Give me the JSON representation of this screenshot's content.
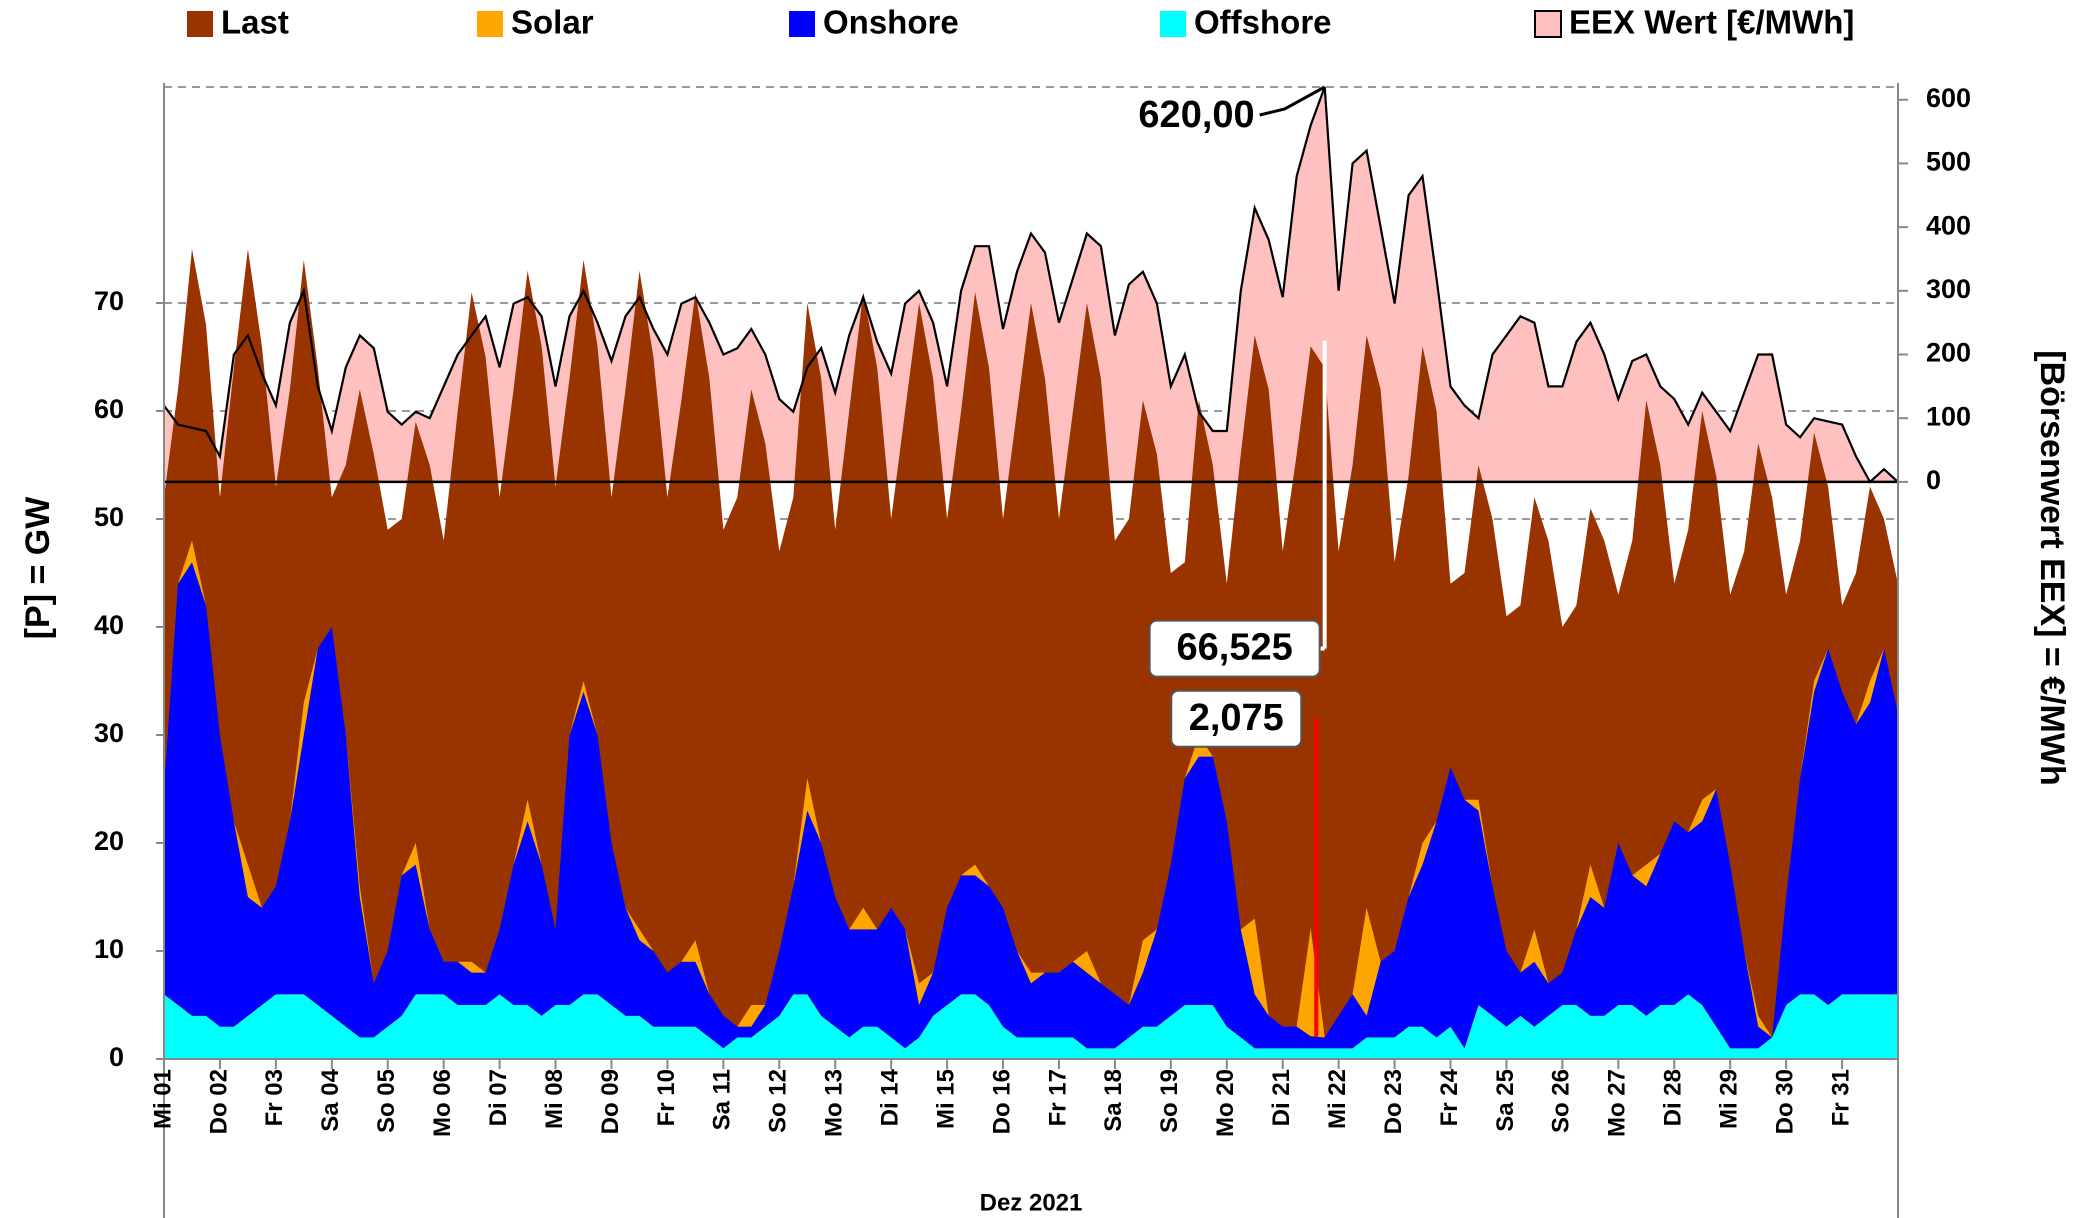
{
  "chart_data": {
    "type": "area",
    "ylabel": "[P]  =  GW",
    "y2label": "[Börsenwert  EEX]  =  €/MWh",
    "xlabel": "Dez 2021",
    "xlim": [
      0,
      31
    ],
    "ylim": [
      0,
      90
    ],
    "y2lim": [
      -906,
      620
    ],
    "yticks": [
      0,
      10,
      20,
      30,
      40,
      50,
      60,
      70
    ],
    "y2ticks": [
      0,
      100,
      200,
      300,
      400,
      500,
      600
    ],
    "grid": true,
    "xticks": [
      {
        "value": 0,
        "label": "Mi 01"
      },
      {
        "value": 1,
        "label": "Do 02"
      },
      {
        "value": 2,
        "label": "Fr 03"
      },
      {
        "value": 3,
        "label": "Sa 04"
      },
      {
        "value": 4,
        "label": "So 05"
      },
      {
        "value": 5,
        "label": "Mo 06"
      },
      {
        "value": 6,
        "label": "Di 07"
      },
      {
        "value": 7,
        "label": "Mi 08"
      },
      {
        "value": 8,
        "label": "Do 09"
      },
      {
        "value": 9,
        "label": "Fr 10"
      },
      {
        "value": 10,
        "label": "Sa 11"
      },
      {
        "value": 11,
        "label": "So 12"
      },
      {
        "value": 12,
        "label": "Mo 13"
      },
      {
        "value": 13,
        "label": "Di 14"
      },
      {
        "value": 14,
        "label": "Mi 15"
      },
      {
        "value": 15,
        "label": "Do 16"
      },
      {
        "value": 16,
        "label": "Fr 17"
      },
      {
        "value": 17,
        "label": "Sa 18"
      },
      {
        "value": 18,
        "label": "So 19"
      },
      {
        "value": 19,
        "label": "Mo 20"
      },
      {
        "value": 20,
        "label": "Di 21"
      },
      {
        "value": 21,
        "label": "Mi 22"
      },
      {
        "value": 22,
        "label": "Do 23"
      },
      {
        "value": 23,
        "label": "Fr 24"
      },
      {
        "value": 24,
        "label": "Sa 25"
      },
      {
        "value": 25,
        "label": "So 26"
      },
      {
        "value": 26,
        "label": "Mo 27"
      },
      {
        "value": 27,
        "label": "Di 28"
      },
      {
        "value": 28,
        "label": "Mi 29"
      },
      {
        "value": 29,
        "label": "Do 30"
      },
      {
        "value": 30,
        "label": "Fr 31"
      }
    ],
    "x": [
      0,
      0.25,
      0.5,
      0.75,
      1,
      1.25,
      1.5,
      1.75,
      2,
      2.25,
      2.5,
      2.75,
      3,
      3.25,
      3.5,
      3.75,
      4,
      4.25,
      4.5,
      4.75,
      5,
      5.25,
      5.5,
      5.75,
      6,
      6.25,
      6.5,
      6.75,
      7,
      7.25,
      7.5,
      7.75,
      8,
      8.25,
      8.5,
      8.75,
      9,
      9.25,
      9.5,
      9.75,
      10,
      10.25,
      10.5,
      10.75,
      11,
      11.25,
      11.5,
      11.75,
      12,
      12.25,
      12.5,
      12.75,
      13,
      13.25,
      13.5,
      13.75,
      14,
      14.25,
      14.5,
      14.75,
      15,
      15.25,
      15.5,
      15.75,
      16,
      16.25,
      16.5,
      16.75,
      17,
      17.25,
      17.5,
      17.75,
      18,
      18.25,
      18.5,
      18.75,
      19,
      19.25,
      19.5,
      19.75,
      20,
      20.25,
      20.5,
      20.75,
      21,
      21.25,
      21.5,
      21.75,
      22,
      22.25,
      22.5,
      22.75,
      23,
      23.25,
      23.5,
      23.75,
      24,
      24.25,
      24.5,
      24.75,
      25,
      25.25,
      25.5,
      25.75,
      26,
      26.25,
      26.5,
      26.75,
      27,
      27.25,
      27.5,
      27.75,
      28,
      28.25,
      28.5,
      28.75,
      29,
      29.25,
      29.5,
      29.75,
      30,
      30.25,
      30.5,
      30.75,
      31
    ],
    "series": [
      {
        "name": "Last",
        "color": "#993300",
        "values": [
          52,
          62,
          75,
          68,
          52,
          64,
          75,
          66,
          53,
          62,
          74,
          64,
          52,
          55,
          62,
          56,
          49,
          50,
          59,
          55,
          48,
          60,
          71,
          65,
          52,
          62,
          73,
          66,
          53,
          63,
          74,
          66,
          52,
          62,
          73,
          65,
          52,
          61,
          71,
          63,
          49,
          52,
          62,
          57,
          47,
          52,
          70,
          63,
          49,
          60,
          71,
          64,
          50,
          60,
          70,
          63,
          50,
          60,
          71,
          64,
          50,
          60,
          70,
          63,
          50,
          60,
          70,
          63,
          48,
          50,
          61,
          56,
          45,
          46,
          61,
          55,
          44,
          56,
          67,
          62,
          47,
          56,
          66,
          64,
          47,
          55,
          67,
          62,
          46,
          54,
          66,
          60,
          44,
          45,
          55,
          50,
          41,
          42,
          52,
          48,
          40,
          42,
          51,
          48,
          43,
          48,
          61,
          55,
          44,
          49,
          60,
          54,
          43,
          47,
          57,
          52,
          43,
          48,
          58,
          53,
          42,
          45,
          53,
          50,
          44
        ]
      },
      {
        "name": "Solar",
        "color": "#FFA500",
        "stack": true,
        "values": [
          0,
          0,
          2,
          0,
          0,
          0,
          3,
          0,
          0,
          0,
          3,
          0,
          0,
          0,
          1,
          0,
          0,
          0,
          2,
          0,
          0,
          0,
          1,
          0,
          0,
          0,
          2,
          0,
          0,
          0,
          1,
          0,
          0,
          0,
          1,
          0,
          0,
          0,
          2,
          0,
          0,
          0,
          2,
          0,
          0,
          0,
          3,
          0,
          0,
          0,
          2,
          0,
          0,
          0,
          2,
          0,
          0,
          0,
          1,
          0,
          0,
          0,
          1,
          0,
          0,
          0,
          2,
          0,
          0,
          0,
          3,
          0,
          0,
          0,
          2,
          0,
          0,
          0,
          7,
          0,
          0,
          0,
          10,
          0,
          0,
          0,
          10,
          0,
          0,
          0,
          2,
          0,
          0,
          0,
          1,
          0,
          0,
          0,
          3,
          0,
          0,
          0,
          3,
          0,
          0,
          0,
          2,
          0,
          0,
          0,
          2,
          0,
          0,
          0,
          1,
          0,
          0,
          0,
          1,
          0,
          0,
          0,
          2,
          0,
          0
        ]
      },
      {
        "name": "Onshore",
        "color": "#0000FF",
        "stack": true,
        "values": [
          19,
          39,
          42,
          38,
          27,
          19,
          11,
          9,
          10,
          16,
          24,
          33,
          36,
          27,
          13,
          5,
          7,
          13,
          12,
          6,
          3,
          4,
          3,
          3,
          6,
          13,
          17,
          14,
          7,
          25,
          28,
          24,
          15,
          10,
          7,
          7,
          5,
          6,
          6,
          4,
          3,
          1,
          1,
          2,
          6,
          10,
          17,
          16,
          12,
          10,
          9,
          9,
          12,
          11,
          3,
          4,
          9,
          11,
          11,
          11,
          11,
          8,
          5,
          6,
          6,
          7,
          7,
          6,
          5,
          3,
          5,
          9,
          14,
          21,
          23,
          23,
          19,
          10,
          5,
          3,
          2,
          2,
          1.1,
          1,
          3,
          5,
          2,
          7,
          8,
          12,
          15,
          20,
          24,
          23,
          18,
          12,
          7,
          4,
          6,
          3,
          3,
          7,
          11,
          10,
          15,
          12,
          12,
          14,
          17,
          15,
          17,
          22,
          17,
          9,
          2,
          0,
          10,
          20,
          28,
          33,
          28,
          25,
          27,
          32,
          26
        ]
      },
      {
        "name": "Offshore",
        "color": "#00FFFF",
        "stack": true,
        "values": [
          6,
          5,
          4,
          4,
          3,
          3,
          4,
          5,
          6,
          6,
          6,
          5,
          4,
          3,
          2,
          2,
          3,
          4,
          6,
          6,
          6,
          5,
          5,
          5,
          6,
          5,
          5,
          4,
          5,
          5,
          6,
          6,
          5,
          4,
          4,
          3,
          3,
          3,
          3,
          2,
          1,
          2,
          2,
          3,
          4,
          6,
          6,
          4,
          3,
          2,
          3,
          3,
          2,
          1,
          2,
          4,
          5,
          6,
          6,
          5,
          3,
          2,
          2,
          2,
          2,
          2,
          1,
          1,
          1,
          2,
          3,
          3,
          4,
          5,
          5,
          5,
          3,
          2,
          1,
          1,
          1,
          1,
          1,
          1,
          1,
          1,
          2,
          2,
          2,
          3,
          3,
          2,
          3,
          1,
          5,
          4,
          3,
          4,
          3,
          4,
          5,
          5,
          4,
          4,
          5,
          5,
          4,
          5,
          5,
          6,
          5,
          3,
          1,
          1,
          1,
          2,
          5,
          6,
          6,
          5,
          6,
          6,
          6,
          6,
          6
        ]
      },
      {
        "name": "EEX Wert [€/MWh]",
        "color": "#FFC0C0",
        "line_color": "#000000",
        "axis": "y2",
        "values": [
          120,
          90,
          85,
          80,
          40,
          200,
          230,
          170,
          120,
          250,
          300,
          150,
          80,
          180,
          230,
          210,
          110,
          90,
          110,
          100,
          150,
          200,
          230,
          260,
          180,
          280,
          290,
          260,
          150,
          260,
          300,
          250,
          190,
          260,
          290,
          240,
          200,
          280,
          290,
          250,
          200,
          210,
          240,
          200,
          130,
          110,
          180,
          210,
          140,
          230,
          290,
          220,
          170,
          280,
          300,
          250,
          150,
          300,
          370,
          370,
          240,
          330,
          390,
          360,
          250,
          320,
          390,
          370,
          230,
          310,
          330,
          280,
          150,
          200,
          110,
          80,
          80,
          300,
          430,
          380,
          290,
          480,
          560,
          620,
          300,
          500,
          520,
          400,
          280,
          450,
          480,
          320,
          150,
          120,
          100,
          200,
          230,
          260,
          250,
          150,
          150,
          220,
          250,
          200,
          130,
          190,
          200,
          150,
          130,
          90,
          140,
          110,
          80,
          140,
          200,
          200,
          90,
          70,
          100,
          95,
          90,
          40,
          0,
          20,
          0
        ]
      }
    ],
    "annotations": [
      {
        "label": "620,00",
        "x": 20.75,
        "value": 620,
        "axis": "y2",
        "color": "#FF0000"
      },
      {
        "label": "66,525",
        "x": 20.75,
        "value": 66.525,
        "color": "#990000"
      },
      {
        "label": "2,075",
        "x": 20.6,
        "value": 2.075,
        "color": "#000000"
      }
    ]
  }
}
